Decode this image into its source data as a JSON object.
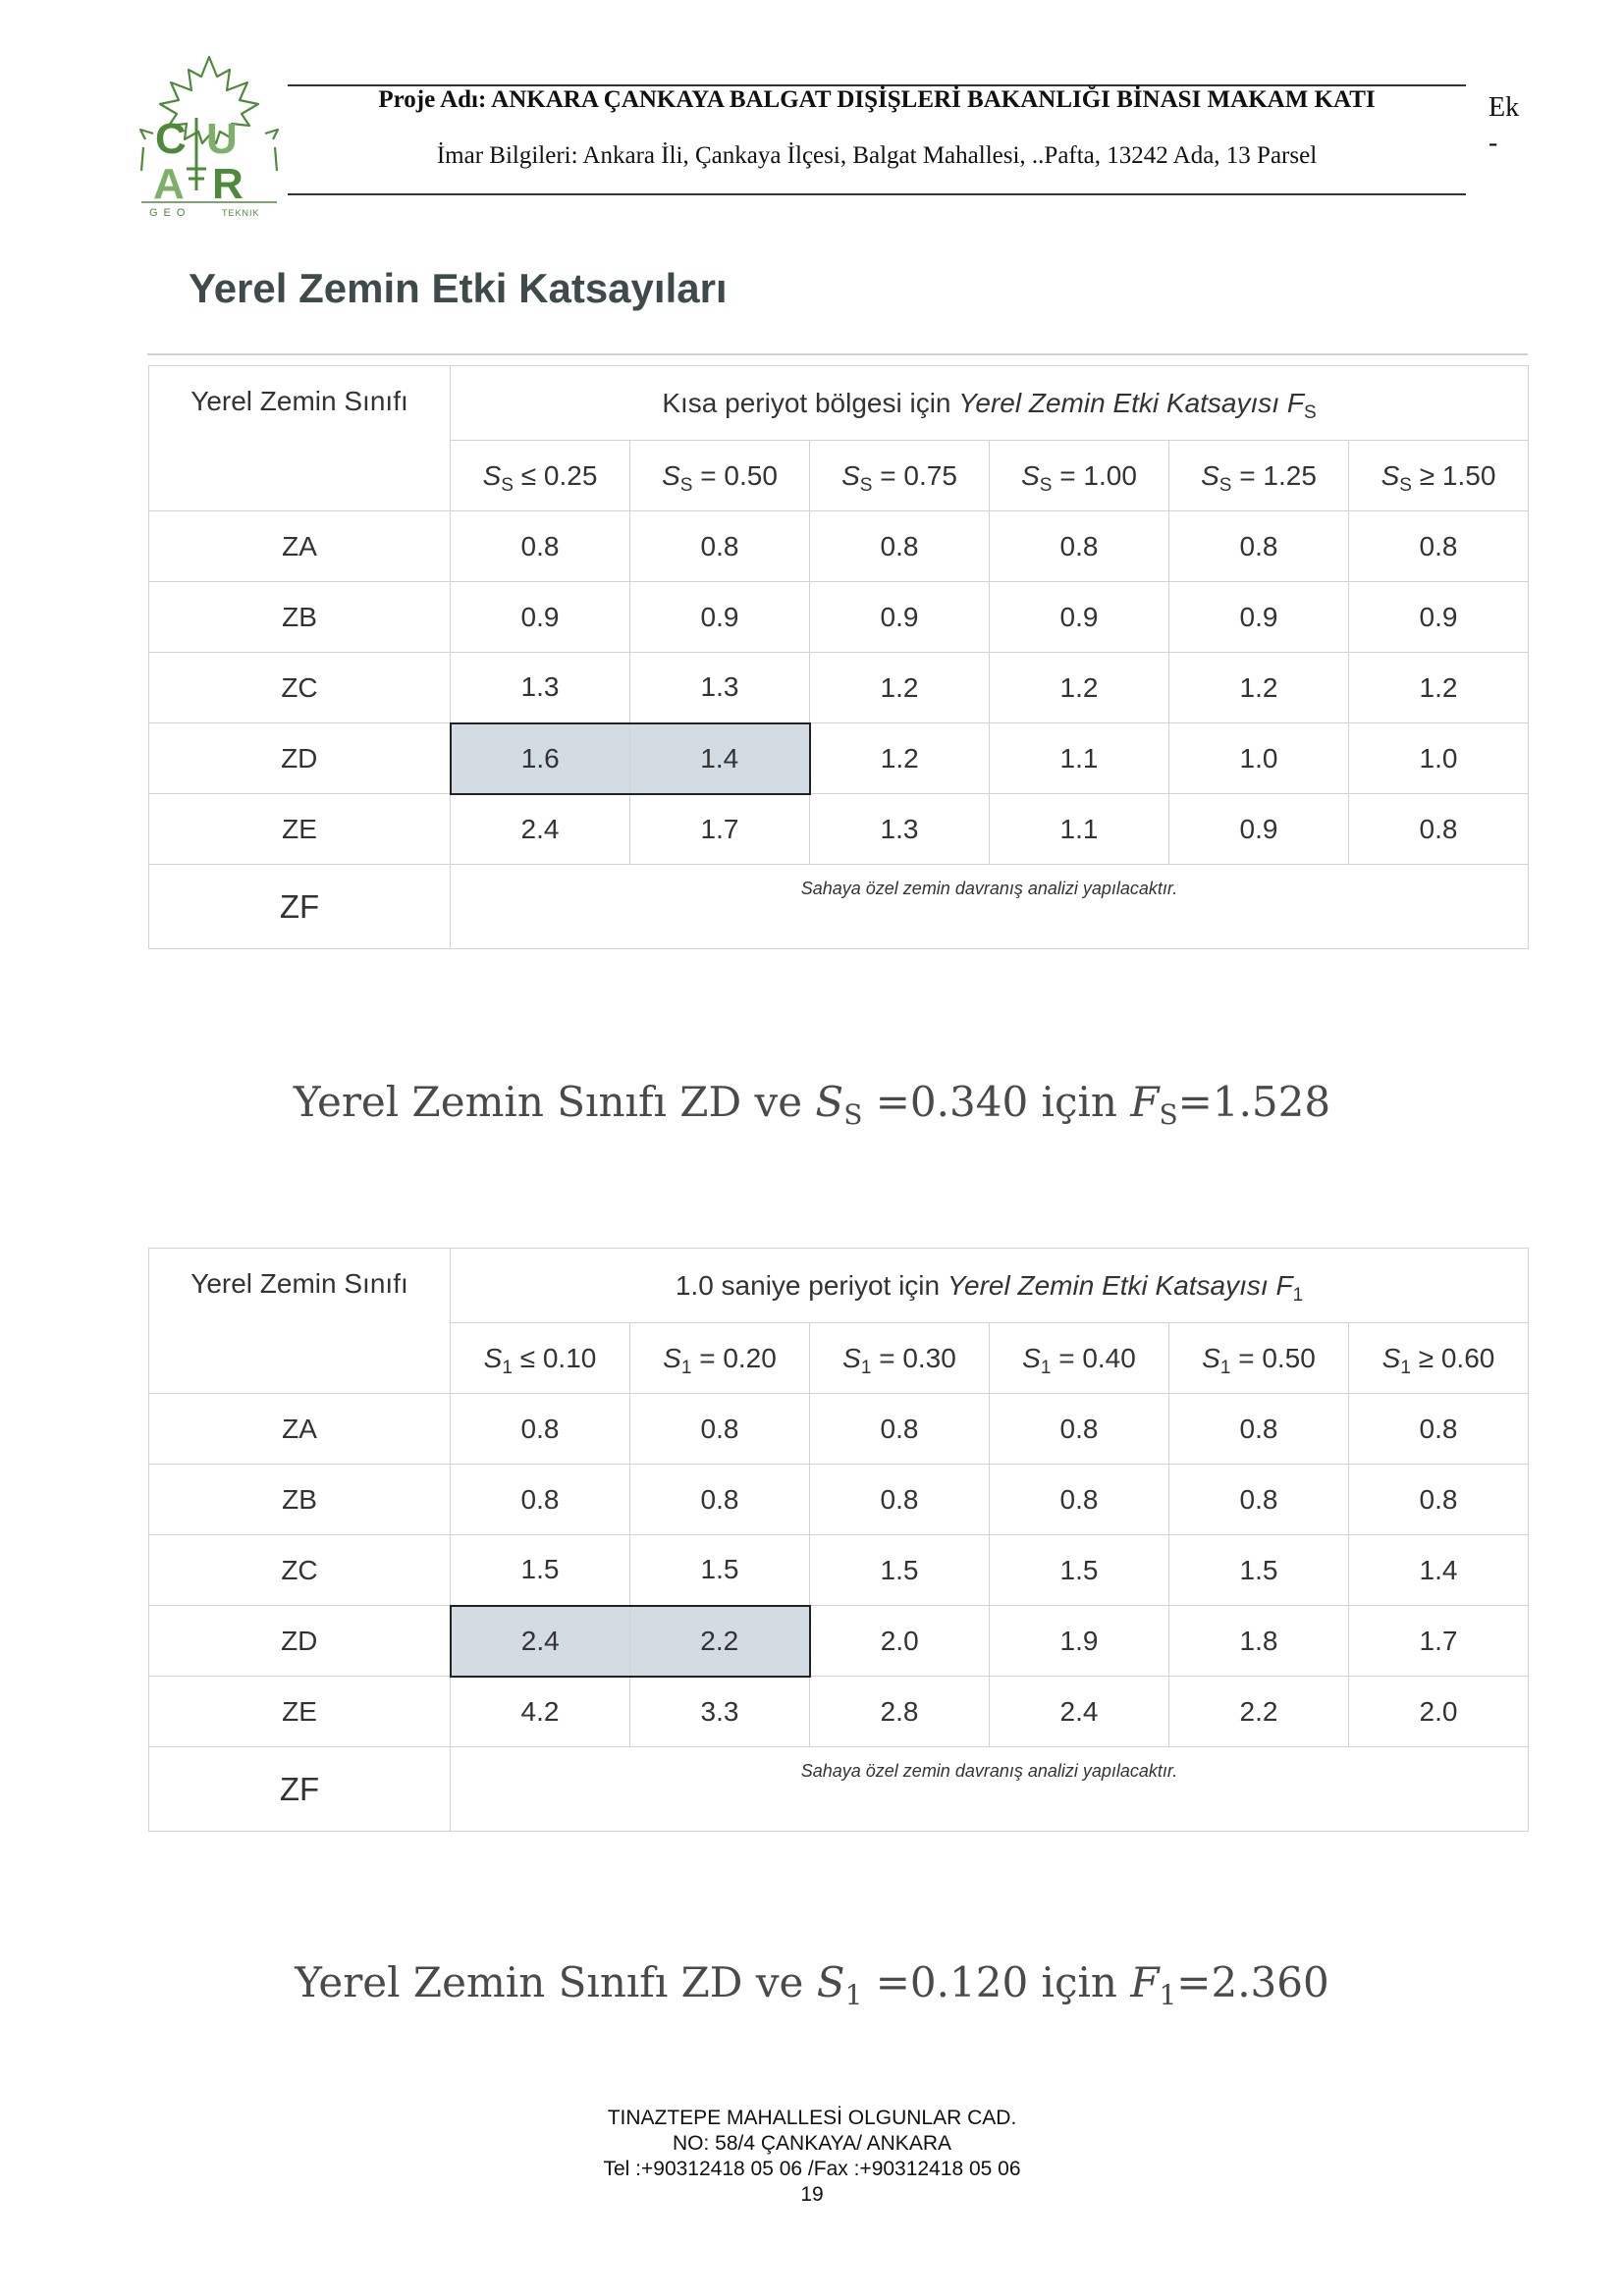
{
  "header": {
    "logo": {
      "letters": "CU AR",
      "tagline_left": "GEO",
      "tagline_right": "TEKNIK",
      "icon": "maple-leaf-icon",
      "color": "#4f8a3c"
    },
    "project_title": "Proje Adı: ANKARA ÇANKAYA BALGAT DIŞİŞLERİ BAKANLIĞI BİNASI MAKAM KATI",
    "zoning_info": "İmar Bilgileri: Ankara İli, Çankaya İlçesi, Balgat Mahallesi, ..Pafta, 13242 Ada, 13 Parsel",
    "ek_label": "Ek",
    "ek_dash": "-"
  },
  "section_title": "Yerel Zemin Etki Katsayıları",
  "table1": {
    "corner_label": "Yerel Zemin Sınıfı",
    "group_header_text": "Kısa periyot bölgesi için ",
    "group_header_italic": "Yerel Zemin Etki Katsayısı ",
    "group_header_symbol": "F",
    "group_header_sub": "S",
    "columns": [
      {
        "sym": "S",
        "sub": "S",
        "rest": " ≤ 0.25"
      },
      {
        "sym": "S",
        "sub": "S",
        "rest": " = 0.50"
      },
      {
        "sym": "S",
        "sub": "S",
        "rest": " = 0.75"
      },
      {
        "sym": "S",
        "sub": "S",
        "rest": " = 1.00"
      },
      {
        "sym": "S",
        "sub": "S",
        "rest": " = 1.25"
      },
      {
        "sym": "S",
        "sub": "S",
        "rest": " ≥ 1.50"
      }
    ],
    "rows": [
      {
        "cls": "ZA",
        "values": [
          "0.8",
          "0.8",
          "0.8",
          "0.8",
          "0.8",
          "0.8"
        ]
      },
      {
        "cls": "ZB",
        "values": [
          "0.9",
          "0.9",
          "0.9",
          "0.9",
          "0.9",
          "0.9"
        ]
      },
      {
        "cls": "ZC",
        "values": [
          "1.3",
          "1.3",
          "1.2",
          "1.2",
          "1.2",
          "1.2"
        ]
      },
      {
        "cls": "ZD",
        "values": [
          "1.6",
          "1.4",
          "1.2",
          "1.1",
          "1.0",
          "1.0"
        ]
      },
      {
        "cls": "ZE",
        "values": [
          "2.4",
          "1.7",
          "1.3",
          "1.1",
          "0.9",
          "0.8"
        ]
      }
    ],
    "highlight": {
      "row": 3,
      "cols": [
        0,
        1
      ],
      "color": "#d3dbe3"
    },
    "zf_label": "ZF",
    "zf_note": "Sahaya özel zemin davranış analizi yapılacaktır."
  },
  "result1": {
    "prefix": "Yerel Zemin Sınıfı ZD ve ",
    "sym": "S",
    "sub": "S",
    "mid": " =0.340 için ",
    "sym2": "F",
    "sub2": "S",
    "value": "=1.528"
  },
  "table2": {
    "corner_label": "Yerel Zemin Sınıfı",
    "group_header_text": "1.0 saniye periyot için ",
    "group_header_italic": "Yerel Zemin Etki Katsayısı ",
    "group_header_symbol": "F",
    "group_header_sub": "1",
    "columns": [
      {
        "sym": "S",
        "sub": "1",
        "rest": " ≤ 0.10"
      },
      {
        "sym": "S",
        "sub": "1",
        "rest": " = 0.20"
      },
      {
        "sym": "S",
        "sub": "1",
        "rest": " = 0.30"
      },
      {
        "sym": "S",
        "sub": "1",
        "rest": " = 0.40"
      },
      {
        "sym": "S",
        "sub": "1",
        "rest": " = 0.50"
      },
      {
        "sym": "S",
        "sub": "1",
        "rest": " ≥ 0.60"
      }
    ],
    "rows": [
      {
        "cls": "ZA",
        "values": [
          "0.8",
          "0.8",
          "0.8",
          "0.8",
          "0.8",
          "0.8"
        ]
      },
      {
        "cls": "ZB",
        "values": [
          "0.8",
          "0.8",
          "0.8",
          "0.8",
          "0.8",
          "0.8"
        ]
      },
      {
        "cls": "ZC",
        "values": [
          "1.5",
          "1.5",
          "1.5",
          "1.5",
          "1.5",
          "1.4"
        ]
      },
      {
        "cls": "ZD",
        "values": [
          "2.4",
          "2.2",
          "2.0",
          "1.9",
          "1.8",
          "1.7"
        ]
      },
      {
        "cls": "ZE",
        "values": [
          "4.2",
          "3.3",
          "2.8",
          "2.4",
          "2.2",
          "2.0"
        ]
      }
    ],
    "highlight": {
      "row": 3,
      "cols": [
        0,
        1
      ],
      "color": "#d3dbe3"
    },
    "zf_label": "ZF",
    "zf_note": "Sahaya özel zemin davranış analizi yapılacaktır."
  },
  "result2": {
    "prefix": "Yerel Zemin Sınıfı ZD ve ",
    "sym": "S",
    "sub": "1",
    "mid": " =0.120 için ",
    "sym2": "F",
    "sub2": "1",
    "value": "=2.360"
  },
  "footer": {
    "line1": "TINAZTEPE MAHALLESİ OLGUNLAR CAD.",
    "line2": "NO: 58/4 ÇANKAYA/ ANKARA",
    "line3": "Tel :+90312418 05 06 /Fax :+90312418 05 06",
    "page_number": "19"
  }
}
